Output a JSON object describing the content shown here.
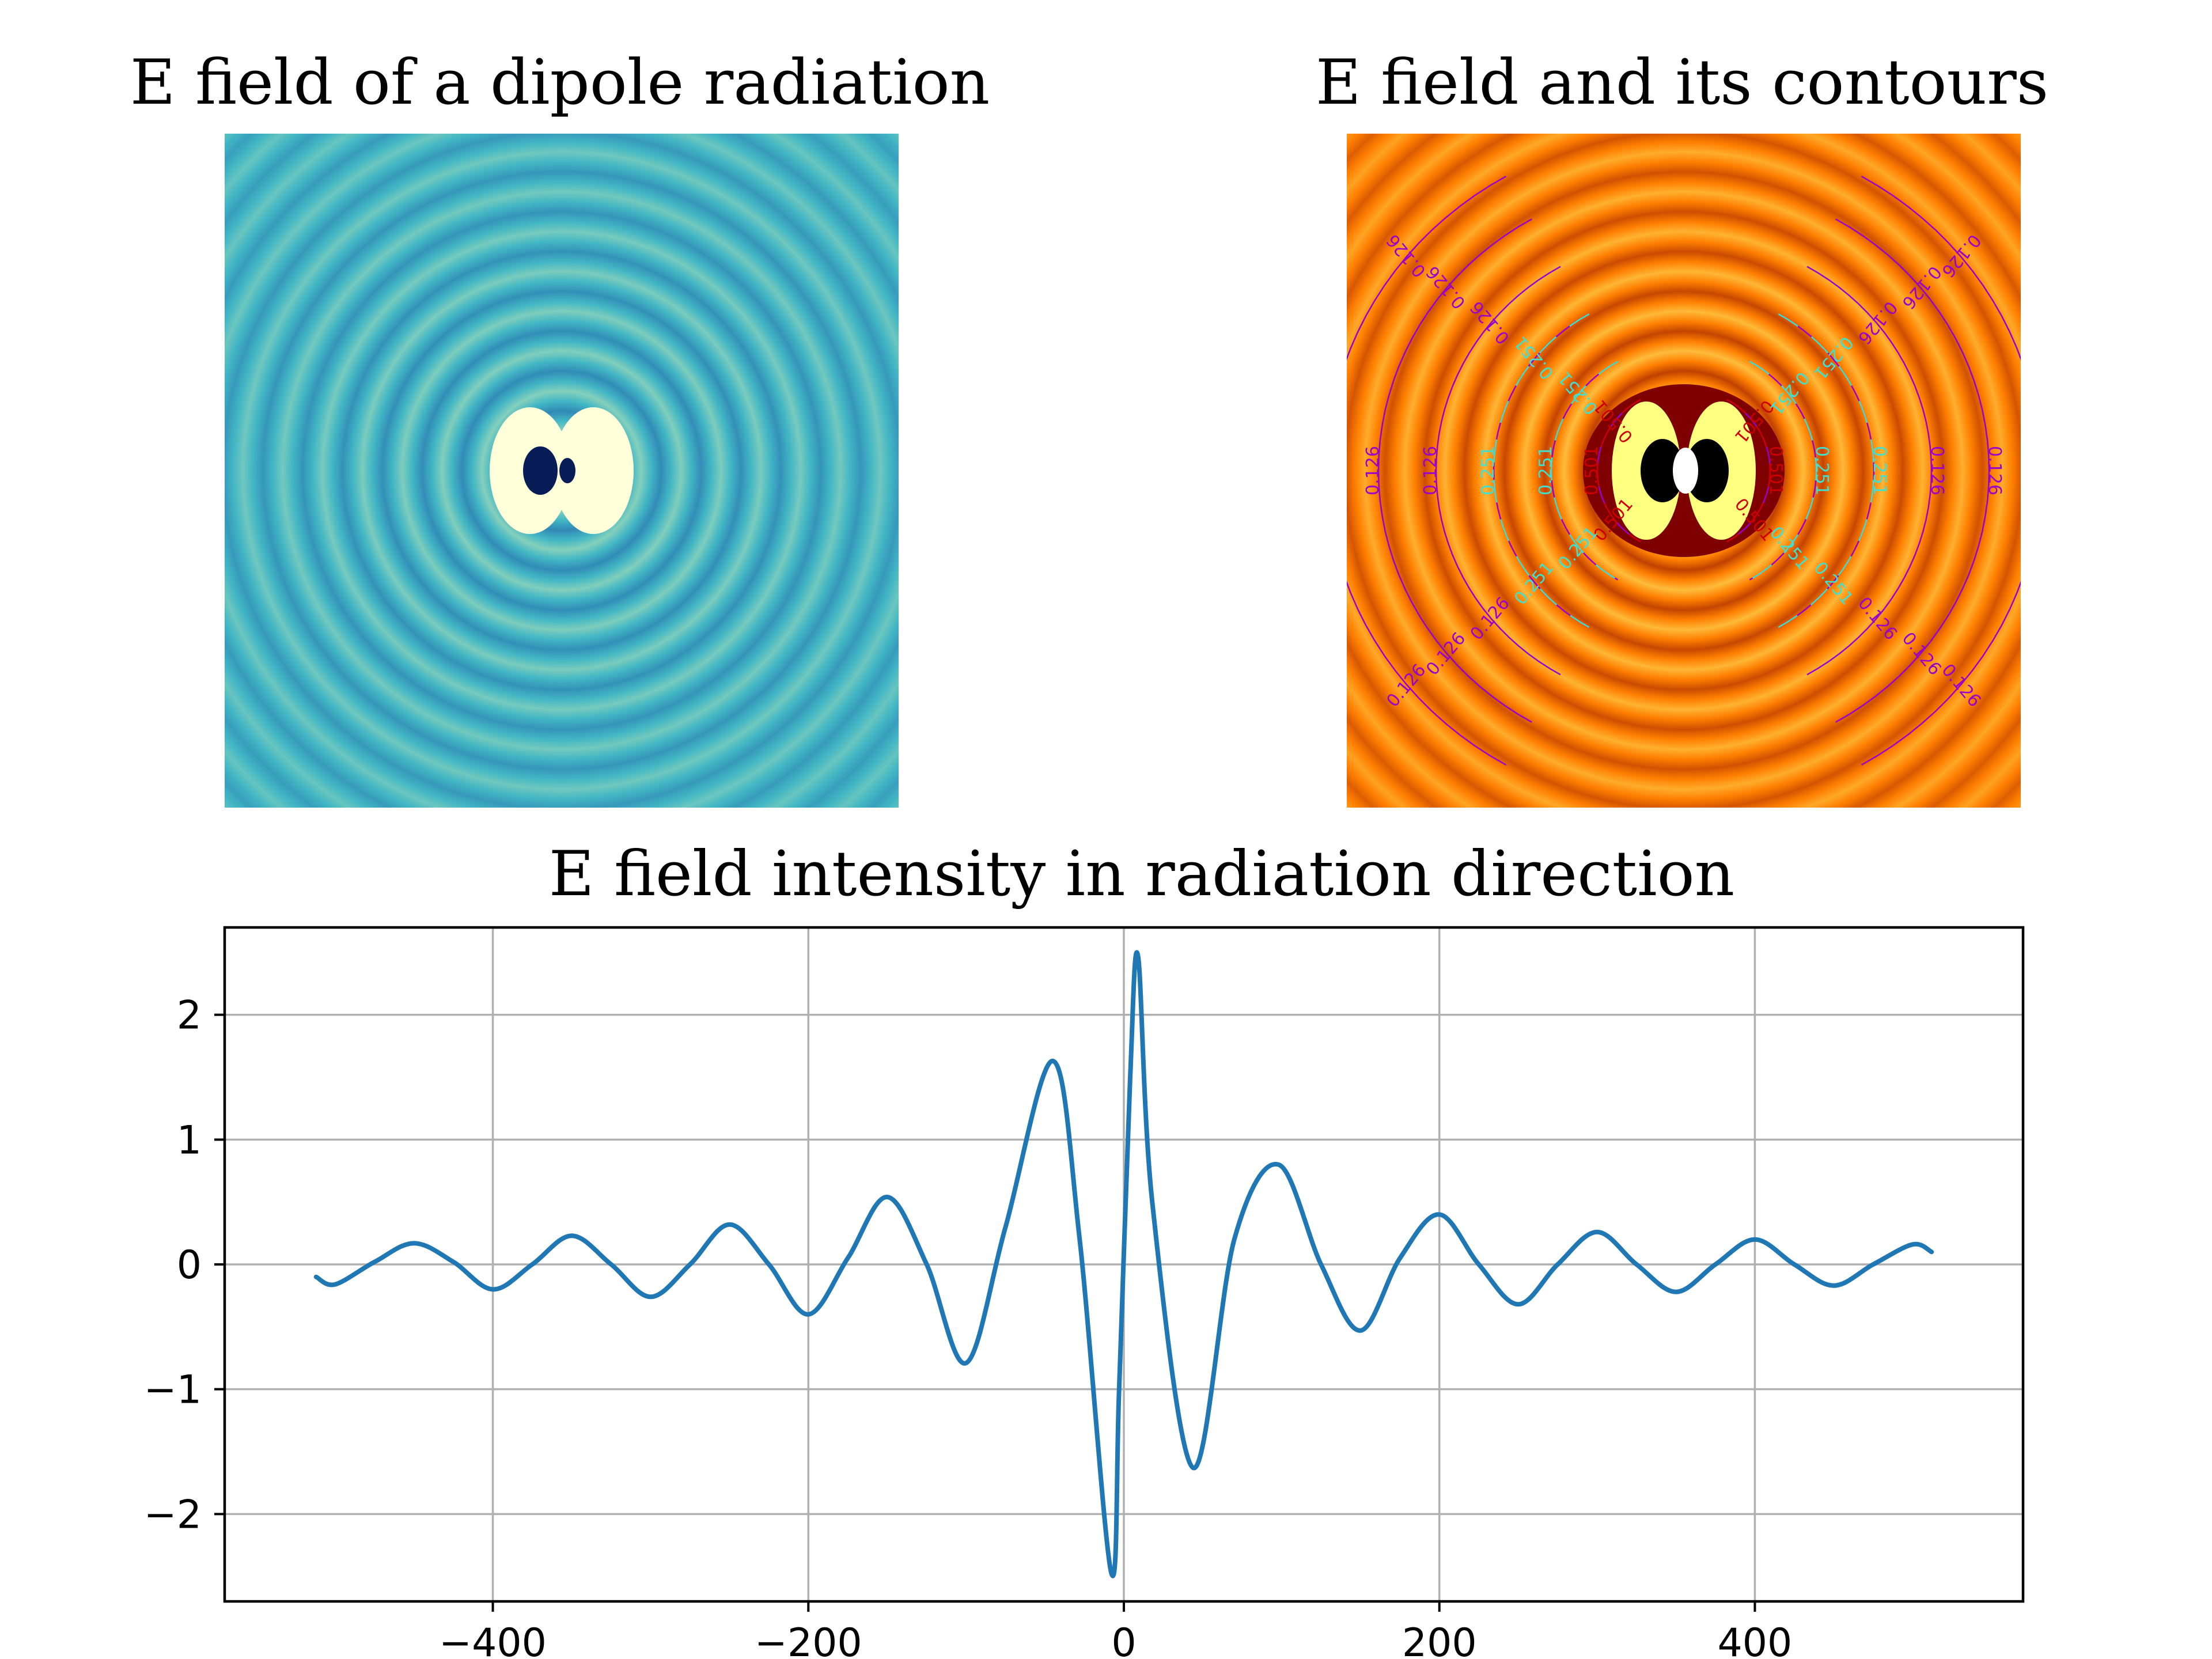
{
  "chart_data": [
    {
      "type": "heatmap",
      "title": "E field of a dipole radiation",
      "colormap": "YlGnBu",
      "colors": [
        "#081d58",
        "#225ea8",
        "#41b6c4",
        "#c7e9b4",
        "#ffffd9"
      ],
      "axes_visible": false
    },
    {
      "type": "heatmap",
      "title": "E field and its contours",
      "colormap": "afmhot",
      "colors": [
        "#000000",
        "#7f0000",
        "#ff7f00",
        "#ffff80",
        "#ffffff"
      ],
      "axes_visible": false,
      "contour_levels": [
        "0.126",
        "0.251",
        "0.501"
      ],
      "contour_colors": [
        "#9900cc",
        "#40e0d0",
        "#cc0000"
      ]
    },
    {
      "type": "line",
      "title": "E field intensity in radiation direction",
      "xlabel": "",
      "ylabel": "",
      "xlim": [
        -570,
        570
      ],
      "ylim": [
        -2.7,
        2.7
      ],
      "xticks": [
        -400,
        -200,
        0,
        200,
        400
      ],
      "yticks": [
        -2,
        -1,
        0,
        1,
        2
      ],
      "xtick_labels": [
        "−400",
        "−200",
        "0",
        "200",
        "400"
      ],
      "ytick_labels": [
        "−2",
        "−1",
        "0",
        "1",
        "2"
      ],
      "grid": true,
      "series": [
        {
          "color": "#1f77b4",
          "points": [
            [
              -512,
              -0.1
            ],
            [
              -500,
              -0.16
            ],
            [
              -475,
              0.02
            ],
            [
              -450,
              0.17
            ],
            [
              -425,
              0.02
            ],
            [
              -400,
              -0.2
            ],
            [
              -375,
              0.0
            ],
            [
              -350,
              0.23
            ],
            [
              -325,
              0.0
            ],
            [
              -300,
              -0.26
            ],
            [
              -275,
              0.0
            ],
            [
              -250,
              0.32
            ],
            [
              -225,
              0.0
            ],
            [
              -200,
              -0.4
            ],
            [
              -175,
              0.05
            ],
            [
              -150,
              0.54
            ],
            [
              -125,
              0.0
            ],
            [
              -100,
              -0.79
            ],
            [
              -75,
              0.3
            ],
            [
              -45,
              1.63
            ],
            [
              -28,
              0.2
            ],
            [
              -8,
              -2.47
            ],
            [
              -3,
              -1.0
            ],
            [
              4,
              1.5
            ],
            [
              9,
              2.47
            ],
            [
              18,
              0.5
            ],
            [
              44,
              -1.63
            ],
            [
              70,
              0.2
            ],
            [
              98,
              0.8
            ],
            [
              125,
              0.0
            ],
            [
              150,
              -0.53
            ],
            [
              175,
              0.05
            ],
            [
              200,
              0.4
            ],
            [
              225,
              0.0
            ],
            [
              250,
              -0.32
            ],
            [
              275,
              0.0
            ],
            [
              300,
              0.26
            ],
            [
              325,
              0.0
            ],
            [
              350,
              -0.22
            ],
            [
              375,
              0.0
            ],
            [
              400,
              0.2
            ],
            [
              425,
              0.0
            ],
            [
              450,
              -0.17
            ],
            [
              475,
              0.0
            ],
            [
              500,
              0.16
            ],
            [
              512,
              0.1
            ]
          ]
        }
      ]
    }
  ]
}
